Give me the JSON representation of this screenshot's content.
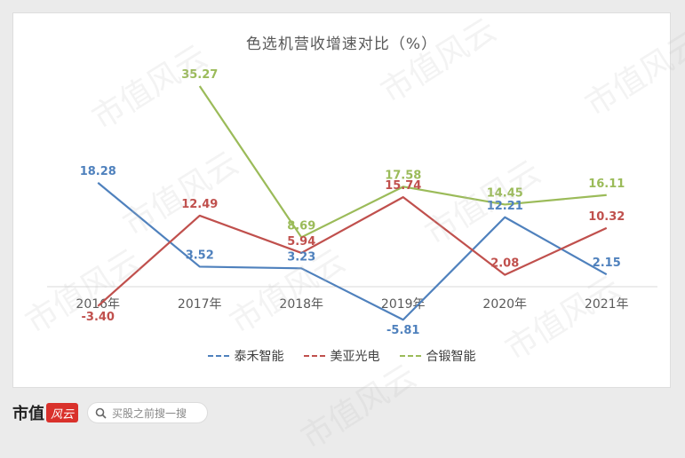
{
  "watermark_text": "市值风云",
  "footer": {
    "brand_text": "市值",
    "brand_logo_text": "风云",
    "search_placeholder": "买股之前搜一搜",
    "search_icon": "search-icon"
  },
  "chart_data": {
    "type": "line",
    "title": "色选机营收增速对比（%）",
    "categories": [
      "2016年",
      "2017年",
      "2018年",
      "2019年",
      "2020年",
      "2021年"
    ],
    "series": [
      {
        "name": "泰禾智能",
        "color": "#4f81bd",
        "values": [
          18.28,
          3.52,
          3.23,
          -5.81,
          12.21,
          2.15
        ]
      },
      {
        "name": "美亚光电",
        "color": "#c0504d",
        "values": [
          -3.4,
          12.49,
          5.94,
          15.74,
          2.08,
          10.32
        ]
      },
      {
        "name": "合锻智能",
        "color": "#9bbb59",
        "values": [
          null,
          35.27,
          8.69,
          17.58,
          14.45,
          16.11
        ]
      }
    ],
    "ylim": [
      -10,
      40
    ],
    "grid": false,
    "legend_position": "bottom"
  }
}
